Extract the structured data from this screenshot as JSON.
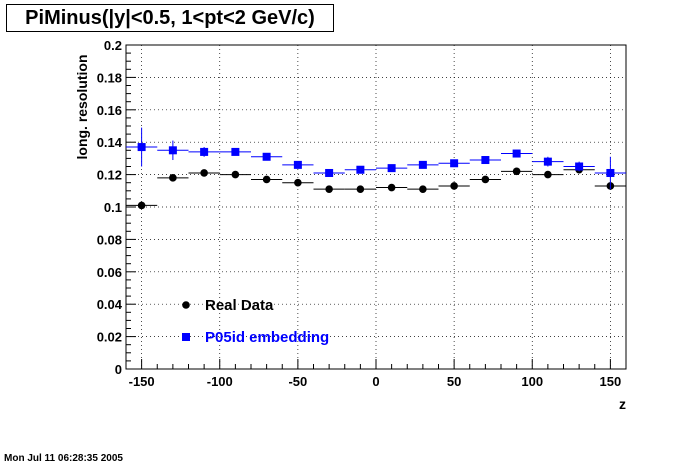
{
  "title": "PiMinus(|y|<0.5, 1<pt<2 GeV/c)",
  "footer": "Mon Jul 11 06:28:35 2005",
  "colors": {
    "real": "#000000",
    "embed": "#0000ff",
    "grid": "#000000"
  },
  "chart_data": {
    "type": "scatter",
    "xlabel": "z",
    "ylabel": "long. resolution",
    "xlim": [
      -160,
      160
    ],
    "ylim": [
      0,
      0.2
    ],
    "xticks": [
      -150,
      -100,
      -50,
      0,
      50,
      100,
      150
    ],
    "xtick_labels": [
      "-150",
      "-100",
      "-50",
      "0",
      "50",
      "100",
      "150"
    ],
    "yticks": [
      0,
      0.02,
      0.04,
      0.06,
      0.08,
      0.1,
      0.12,
      0.14,
      0.16,
      0.18,
      0.2
    ],
    "ytick_labels": [
      "0",
      "0.02",
      "0.04",
      "0.06",
      "0.08",
      "0.1",
      "0.12",
      "0.14",
      "0.16",
      "0.18",
      "0.2"
    ],
    "grid": "dotted",
    "legend_position": "bottom-left",
    "bin_halfwidth": 10,
    "series": [
      {
        "name": "Real Data",
        "marker": "circle",
        "color": "#000000",
        "x": [
          -150,
          -130,
          -110,
          -90,
          -70,
          -50,
          -30,
          -10,
          10,
          30,
          50,
          70,
          90,
          110,
          130,
          150
        ],
        "y": [
          0.101,
          0.118,
          0.121,
          0.12,
          0.117,
          0.115,
          0.111,
          0.111,
          0.112,
          0.111,
          0.113,
          0.117,
          0.122,
          0.12,
          0.123,
          0.113
        ],
        "yerr": [
          0.002,
          0.002,
          0.002,
          0.002,
          0.002,
          0.002,
          0.001,
          0.001,
          0.001,
          0.001,
          0.002,
          0.002,
          0.002,
          0.002,
          0.002,
          0.002
        ]
      },
      {
        "name": "P05id embedding",
        "marker": "square",
        "color": "#0000ff",
        "x": [
          -150,
          -130,
          -110,
          -90,
          -70,
          -50,
          -30,
          -10,
          10,
          30,
          50,
          70,
          90,
          110,
          130,
          150
        ],
        "y": [
          0.137,
          0.135,
          0.134,
          0.134,
          0.131,
          0.126,
          0.121,
          0.123,
          0.124,
          0.126,
          0.127,
          0.129,
          0.133,
          0.128,
          0.125,
          0.121
        ],
        "yerr": [
          0.012,
          0.006,
          0.003,
          0.002,
          0.002,
          0.002,
          0.002,
          0.002,
          0.002,
          0.002,
          0.002,
          0.002,
          0.002,
          0.003,
          0.003,
          0.01
        ]
      }
    ]
  }
}
